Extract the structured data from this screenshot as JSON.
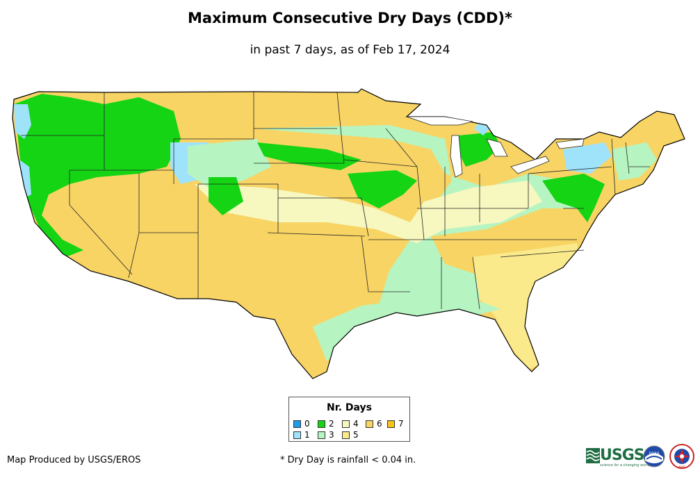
{
  "title": "Maximum Consecutive Dry Days (CDD)*",
  "subtitle": "in past 7 days, as of Feb 17, 2024",
  "legend": {
    "title": "Nr. Days",
    "items": [
      {
        "label": "0",
        "color": "#1e9be8"
      },
      {
        "label": "1",
        "color": "#9ee3fa"
      },
      {
        "label": "2",
        "color": "#14d414"
      },
      {
        "label": "3",
        "color": "#b6f5c2"
      },
      {
        "label": "4",
        "color": "#f7f7c0"
      },
      {
        "label": "5",
        "color": "#faea8c"
      },
      {
        "label": "6",
        "color": "#f8d465"
      },
      {
        "label": "7",
        "color": "#f5c21a"
      }
    ]
  },
  "footer": {
    "credit": "Map Produced by USGS/EROS",
    "note": "* Dry Day is rainfall < 0.04 in."
  },
  "logos": {
    "usgs_word": "USGS",
    "usgs_tagline": "science for a changing world",
    "noaa_word": "noaa",
    "nws_word": "NWS"
  }
}
